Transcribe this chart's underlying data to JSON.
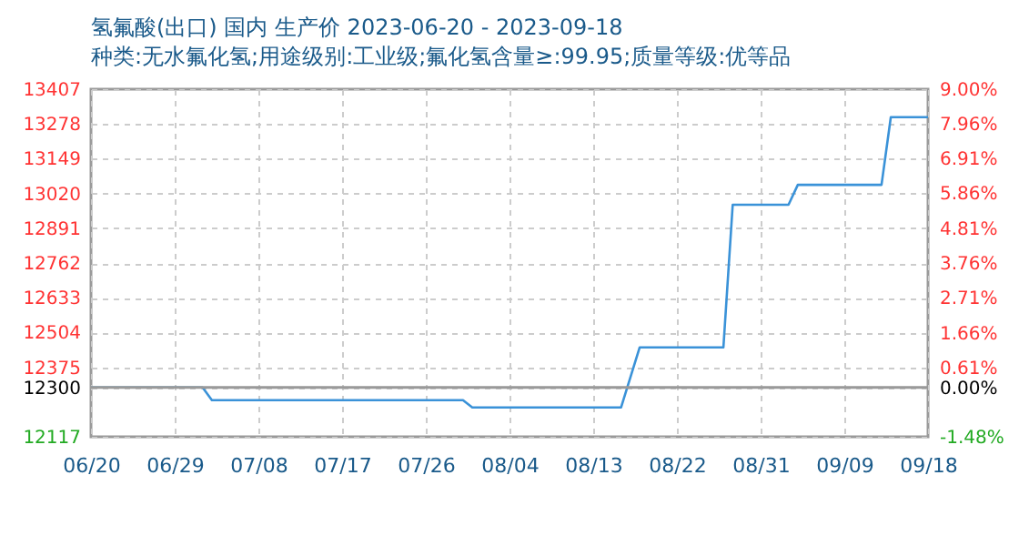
{
  "chart_data": {
    "type": "line",
    "title": "氢氟酸(出口) 国内 生产价 2023-06-20 - 2023-09-18",
    "subtitle": "种类:无水氟化氢;用途级别:工业级;氟化氢含量≥:99.95;质量等级:优等品",
    "x": [
      "2023-06-20",
      "2023-07-02",
      "2023-07-03",
      "2023-07-30",
      "2023-07-31",
      "2023-08-16",
      "2023-08-18",
      "2023-08-27",
      "2023-08-28",
      "2023-09-03",
      "2023-09-04",
      "2023-09-13",
      "2023-09-14",
      "2023-09-18"
    ],
    "series": [
      {
        "color": "#3a92d8",
        "values": [
          12300,
          12300,
          12253,
          12253,
          12226,
          12226,
          12449,
          12449,
          12978,
          12978,
          13052,
          13052,
          13303,
          13303
        ]
      }
    ],
    "xlim": [
      "2023-06-20",
      "2023-09-18"
    ],
    "xticks": [
      {
        "value": "2023-06-20",
        "label": "06/20"
      },
      {
        "value": "2023-06-29",
        "label": "06/29"
      },
      {
        "value": "2023-07-08",
        "label": "07/08"
      },
      {
        "value": "2023-07-17",
        "label": "07/17"
      },
      {
        "value": "2023-07-26",
        "label": "07/26"
      },
      {
        "value": "2023-08-04",
        "label": "08/04"
      },
      {
        "value": "2023-08-13",
        "label": "08/13"
      },
      {
        "value": "2023-08-22",
        "label": "08/22"
      },
      {
        "value": "2023-08-31",
        "label": "08/31"
      },
      {
        "value": "2023-09-09",
        "label": "09/09"
      },
      {
        "value": "2023-09-18",
        "label": "09/18"
      }
    ],
    "ylim": [
      12117,
      13407
    ],
    "yticks": [
      12117,
      12300,
      12375,
      12504,
      12633,
      12762,
      12891,
      13020,
      13149,
      13278,
      13407
    ],
    "y2lim": [
      -1.48,
      9.0
    ],
    "y2ticks": [
      {
        "value": -1.48,
        "label": "-1.48%"
      },
      {
        "value": 0,
        "label": "0.00%"
      },
      {
        "value": 0.61,
        "label": "0.61%"
      },
      {
        "value": 1.66,
        "label": "1.66%"
      },
      {
        "value": 2.71,
        "label": "2.71%"
      },
      {
        "value": 3.76,
        "label": "3.76%"
      },
      {
        "value": 4.81,
        "label": "4.81%"
      },
      {
        "value": 5.86,
        "label": "5.86%"
      },
      {
        "value": 6.91,
        "label": "6.91%"
      },
      {
        "value": 7.96,
        "label": "7.96%"
      },
      {
        "value": 9.0,
        "label": "9.00%"
      }
    ],
    "ref_lines": [
      {
        "axis": "y",
        "value": 12300,
        "color": "#999999"
      }
    ],
    "grid": true,
    "legend": false,
    "marker": "none",
    "line_style": "solid"
  }
}
